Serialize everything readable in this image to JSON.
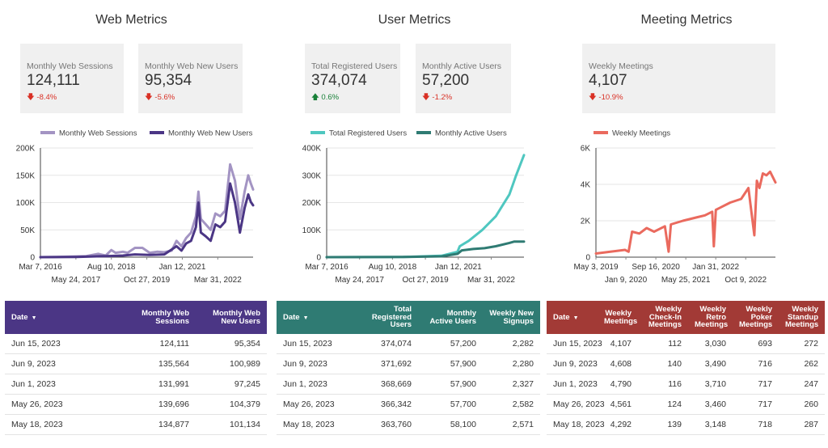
{
  "sections": [
    {
      "title": "Web Metrics",
      "scorecards": [
        {
          "label": "Monthly Web Sessions",
          "value": "124,111",
          "delta": "-8.4%",
          "direction": "down"
        },
        {
          "label": "Monthly Web New Users",
          "value": "95,354",
          "delta": "-5.6%",
          "direction": "down"
        }
      ],
      "table": {
        "header_color": "#4b3685",
        "columns": [
          "Date",
          "Monthly Web Sessions",
          "Monthly Web New Users"
        ],
        "rows": [
          [
            "Jun 15, 2023",
            "124,111",
            "95,354"
          ],
          [
            "Jun 9, 2023",
            "135,564",
            "100,989"
          ],
          [
            "Jun 1, 2023",
            "131,991",
            "97,245"
          ],
          [
            "May 26, 2023",
            "139,696",
            "104,379"
          ],
          [
            "May 18, 2023",
            "134,877",
            "101,134"
          ]
        ]
      }
    },
    {
      "title": "User Metrics",
      "scorecards": [
        {
          "label": "Total Registered Users",
          "value": "374,074",
          "delta": "0.6%",
          "direction": "up"
        },
        {
          "label": "Monthly Active Users",
          "value": "57,200",
          "delta": "-1.2%",
          "direction": "down"
        }
      ],
      "table": {
        "header_color": "#2f7b73",
        "columns": [
          "Date",
          "Total Registered Users",
          "Monthly Active Users",
          "Weekly New Signups"
        ],
        "rows": [
          [
            "Jun 15, 2023",
            "374,074",
            "57,200",
            "2,282"
          ],
          [
            "Jun 9, 2023",
            "371,692",
            "57,900",
            "2,280"
          ],
          [
            "Jun 1, 2023",
            "368,669",
            "57,900",
            "2,327"
          ],
          [
            "May 26, 2023",
            "366,342",
            "57,700",
            "2,582"
          ],
          [
            "May 18, 2023",
            "363,760",
            "58,100",
            "2,571"
          ]
        ]
      }
    },
    {
      "title": "Meeting Metrics",
      "scorecards": [
        {
          "label": "Weekly Meetings",
          "value": "4,107",
          "delta": "-10.9%",
          "direction": "down"
        }
      ],
      "table": {
        "header_color": "#a23a36",
        "columns": [
          "Date",
          "Weekly Meetings",
          "Weekly Check-In Meetings",
          "Weekly Retro Meetings",
          "Weekly Poker Meetings",
          "Weekly Standup Meetings"
        ],
        "rows": [
          [
            "Jun 15, 2023",
            "4,107",
            "112",
            "3,030",
            "693",
            "272"
          ],
          [
            "Jun 9, 2023",
            "4,608",
            "140",
            "3,490",
            "716",
            "262"
          ],
          [
            "Jun 1, 2023",
            "4,790",
            "116",
            "3,710",
            "717",
            "247"
          ],
          [
            "May 26, 2023",
            "4,561",
            "124",
            "3,460",
            "717",
            "260"
          ],
          [
            "May 18, 2023",
            "4,292",
            "139",
            "3,148",
            "718",
            "287"
          ]
        ]
      }
    }
  ],
  "chart_data": [
    {
      "type": "line",
      "title": "",
      "y_ticks": [
        "0",
        "50K",
        "100K",
        "150K",
        "200K"
      ],
      "ylim": [
        0,
        200000
      ],
      "x_range": [
        "2016-03-07",
        "2023-06-15"
      ],
      "x_ticks": [
        "Mar 7, 2016",
        "May 24, 2017",
        "Aug 10, 2018",
        "Oct 27, 2019",
        "Jan 12, 2021",
        "Mar 31, 2022"
      ],
      "legend": [
        "Monthly Web Sessions",
        "Monthly Web New Users"
      ],
      "legend_position": "top",
      "series": [
        {
          "name": "Monthly Web Sessions",
          "color": "#a394c3",
          "points": [
            [
              "2016-03-07",
              0
            ],
            [
              "2016-10-01",
              500
            ],
            [
              "2017-04-01",
              1000
            ],
            [
              "2017-10-01",
              2000
            ],
            [
              "2018-03-01",
              6000
            ],
            [
              "2018-06-01",
              3000
            ],
            [
              "2018-08-10",
              13000
            ],
            [
              "2018-10-01",
              8000
            ],
            [
              "2019-01-01",
              10000
            ],
            [
              "2019-03-01",
              8000
            ],
            [
              "2019-06-01",
              17000
            ],
            [
              "2019-09-01",
              17000
            ],
            [
              "2019-12-01",
              8000
            ],
            [
              "2020-03-01",
              10000
            ],
            [
              "2020-06-01",
              9000
            ],
            [
              "2020-09-01",
              12000
            ],
            [
              "2020-11-01",
              30000
            ],
            [
              "2021-01-01",
              20000
            ],
            [
              "2021-03-01",
              35000
            ],
            [
              "2021-05-01",
              45000
            ],
            [
              "2021-07-01",
              75000
            ],
            [
              "2021-08-01",
              120000
            ],
            [
              "2021-09-01",
              70000
            ],
            [
              "2021-11-01",
              60000
            ],
            [
              "2022-01-01",
              50000
            ],
            [
              "2022-03-01",
              80000
            ],
            [
              "2022-05-01",
              75000
            ],
            [
              "2022-07-01",
              85000
            ],
            [
              "2022-09-01",
              170000
            ],
            [
              "2022-11-01",
              140000
            ],
            [
              "2023-01-01",
              70000
            ],
            [
              "2023-03-01",
              120000
            ],
            [
              "2023-04-15",
              150000
            ],
            [
              "2023-05-18",
              135000
            ],
            [
              "2023-06-15",
              124000
            ]
          ]
        },
        {
          "name": "Monthly Web New Users",
          "color": "#4b3685",
          "points": [
            [
              "2016-03-07",
              0
            ],
            [
              "2017-06-01",
              500
            ],
            [
              "2018-06-01",
              2000
            ],
            [
              "2019-01-01",
              3000
            ],
            [
              "2019-06-01",
              5000
            ],
            [
              "2019-12-01",
              4000
            ],
            [
              "2020-06-01",
              5000
            ],
            [
              "2020-11-01",
              20000
            ],
            [
              "2021-01-01",
              12000
            ],
            [
              "2021-03-01",
              25000
            ],
            [
              "2021-05-01",
              30000
            ],
            [
              "2021-07-01",
              55000
            ],
            [
              "2021-08-01",
              100000
            ],
            [
              "2021-09-01",
              45000
            ],
            [
              "2021-11-01",
              38000
            ],
            [
              "2022-01-01",
              30000
            ],
            [
              "2022-03-01",
              60000
            ],
            [
              "2022-05-01",
              55000
            ],
            [
              "2022-07-01",
              65000
            ],
            [
              "2022-09-01",
              135000
            ],
            [
              "2022-11-01",
              100000
            ],
            [
              "2023-01-01",
              45000
            ],
            [
              "2023-03-01",
              90000
            ],
            [
              "2023-04-15",
              115000
            ],
            [
              "2023-05-18",
              101000
            ],
            [
              "2023-06-15",
              95000
            ]
          ]
        }
      ]
    },
    {
      "type": "line",
      "title": "",
      "y_ticks": [
        "0",
        "100K",
        "200K",
        "300K",
        "400K"
      ],
      "ylim": [
        0,
        400000
      ],
      "x_range": [
        "2016-03-07",
        "2023-06-15"
      ],
      "x_ticks": [
        "Mar 7, 2016",
        "May 24, 2017",
        "Aug 10, 2018",
        "Oct 27, 2019",
        "Jan 12, 2021",
        "Mar 31, 2022"
      ],
      "legend": [
        "Total Registered Users",
        "Monthly Active Users"
      ],
      "legend_position": "top",
      "series": [
        {
          "name": "Total Registered Users",
          "color": "#4fc7c0",
          "points": [
            [
              "2016-03-07",
              0
            ],
            [
              "2019-01-01",
              500
            ],
            [
              "2020-06-01",
              5000
            ],
            [
              "2021-01-01",
              20000
            ],
            [
              "2021-02-01",
              40000
            ],
            [
              "2021-06-01",
              60000
            ],
            [
              "2021-12-01",
              100000
            ],
            [
              "2022-06-01",
              150000
            ],
            [
              "2022-12-01",
              230000
            ],
            [
              "2023-03-01",
              300000
            ],
            [
              "2023-06-15",
              374000
            ]
          ]
        },
        {
          "name": "Monthly Active Users",
          "color": "#2f7b73",
          "points": [
            [
              "2016-03-07",
              0
            ],
            [
              "2019-01-01",
              500
            ],
            [
              "2020-06-01",
              3000
            ],
            [
              "2021-01-01",
              12000
            ],
            [
              "2021-03-01",
              25000
            ],
            [
              "2021-08-01",
              30000
            ],
            [
              "2022-01-01",
              33000
            ],
            [
              "2022-06-01",
              40000
            ],
            [
              "2022-12-01",
              52000
            ],
            [
              "2023-02-01",
              57000
            ],
            [
              "2023-06-15",
              57200
            ]
          ]
        }
      ]
    },
    {
      "type": "line",
      "title": "",
      "y_ticks": [
        "0",
        "2K",
        "4K",
        "6K"
      ],
      "ylim": [
        0,
        6000
      ],
      "x_range": [
        "2019-05-03",
        "2023-06-15"
      ],
      "x_ticks": [
        "May 3, 2019",
        "Jan 9, 2020",
        "Sep 16, 2020",
        "May 25, 2021",
        "Jan 31, 2022",
        "Oct 9, 2022"
      ],
      "legend": [
        "Weekly Meetings"
      ],
      "legend_position": "top",
      "series": [
        {
          "name": "Weekly Meetings",
          "color": "#ea6a5e",
          "points": [
            [
              "2019-05-03",
              200
            ],
            [
              "2019-09-01",
              300
            ],
            [
              "2020-01-01",
              400
            ],
            [
              "2020-02-01",
              300
            ],
            [
              "2020-03-01",
              1400
            ],
            [
              "2020-05-01",
              1300
            ],
            [
              "2020-07-01",
              1600
            ],
            [
              "2020-09-01",
              1400
            ],
            [
              "2020-12-01",
              1700
            ],
            [
              "2021-01-01",
              300
            ],
            [
              "2021-01-20",
              1800
            ],
            [
              "2021-05-01",
              2000
            ],
            [
              "2021-09-01",
              2200
            ],
            [
              "2021-11-01",
              2300
            ],
            [
              "2022-01-01",
              2500
            ],
            [
              "2022-01-15",
              600
            ],
            [
              "2022-02-01",
              2600
            ],
            [
              "2022-06-01",
              3000
            ],
            [
              "2022-09-01",
              3200
            ],
            [
              "2022-11-01",
              3800
            ],
            [
              "2022-12-20",
              1200
            ],
            [
              "2023-01-10",
              4200
            ],
            [
              "2023-02-01",
              3800
            ],
            [
              "2023-03-01",
              4600
            ],
            [
              "2023-04-01",
              4500
            ],
            [
              "2023-05-01",
              4700
            ],
            [
              "2023-06-15",
              4107
            ]
          ]
        }
      ]
    }
  ]
}
